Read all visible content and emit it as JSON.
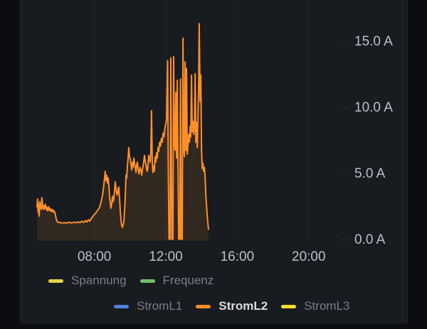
{
  "panel": {
    "page_bg": "#0c0d10",
    "panel_bg": "#181b1f",
    "border_color": "#22252b"
  },
  "chart_data": {
    "type": "line",
    "unit": "A",
    "grid": "vertical-only",
    "legend_position": "bottom",
    "x_axis": {
      "ticks": [
        {
          "hour": 8,
          "label": "08:00"
        },
        {
          "hour": 12,
          "label": "12:00"
        },
        {
          "hour": 16,
          "label": "16:00"
        },
        {
          "hour": 20,
          "label": "20:00"
        }
      ]
    },
    "y_axis": {
      "ticks": [
        {
          "amps": 15,
          "label": "15.0 A"
        },
        {
          "amps": 10,
          "label": "10.0 A"
        },
        {
          "amps": 5,
          "label": "5.0 A"
        },
        {
          "amps": 0,
          "label": "0.0 A"
        }
      ],
      "visible_top_amps": 18.2
    },
    "series": [
      {
        "name": "StromL2",
        "color": "#ff8f2b",
        "fill_opacity": 0.11,
        "points": [
          [
            4.79,
            2.5
          ],
          [
            4.82,
            3.1
          ],
          [
            4.85,
            2.1
          ],
          [
            4.88,
            2.7
          ],
          [
            4.91,
            1.8
          ],
          [
            4.94,
            2.9
          ],
          [
            4.97,
            2.4
          ],
          [
            5.0,
            2.7
          ],
          [
            5.03,
            2.3
          ],
          [
            5.06,
            3.2
          ],
          [
            5.09,
            2.8
          ],
          [
            5.12,
            2.4
          ],
          [
            5.15,
            2.6
          ],
          [
            5.18,
            2.3
          ],
          [
            5.22,
            2.5
          ],
          [
            5.26,
            2.7
          ],
          [
            5.3,
            2.3
          ],
          [
            5.34,
            2.5
          ],
          [
            5.38,
            2.2
          ],
          [
            5.42,
            2.4
          ],
          [
            5.46,
            2.5
          ],
          [
            5.5,
            2.2
          ],
          [
            5.55,
            2.35
          ],
          [
            5.6,
            2.15
          ],
          [
            5.65,
            2.3
          ],
          [
            5.7,
            2.1
          ],
          [
            5.75,
            2.2
          ],
          [
            5.8,
            2.0
          ],
          [
            5.85,
            1.7
          ],
          [
            5.9,
            1.4
          ],
          [
            6.0,
            1.32
          ],
          [
            6.1,
            1.3
          ],
          [
            6.2,
            1.28
          ],
          [
            6.3,
            1.3
          ],
          [
            6.4,
            1.27
          ],
          [
            6.5,
            1.3
          ],
          [
            6.6,
            1.33
          ],
          [
            6.7,
            1.28
          ],
          [
            6.8,
            1.3
          ],
          [
            6.9,
            1.34
          ],
          [
            7.0,
            1.3
          ],
          [
            7.1,
            1.36
          ],
          [
            7.2,
            1.3
          ],
          [
            7.3,
            1.42
          ],
          [
            7.4,
            1.32
          ],
          [
            7.5,
            1.45
          ],
          [
            7.58,
            1.35
          ],
          [
            7.66,
            1.52
          ],
          [
            7.74,
            1.42
          ],
          [
            7.82,
            1.6
          ],
          [
            7.9,
            1.75
          ],
          [
            7.98,
            1.9
          ],
          [
            8.06,
            2.0
          ],
          [
            8.14,
            2.15
          ],
          [
            8.22,
            2.3
          ],
          [
            8.3,
            2.5
          ],
          [
            8.38,
            2.9
          ],
          [
            8.46,
            3.4
          ],
          [
            8.54,
            4.3
          ],
          [
            8.61,
            5.2
          ],
          [
            8.65,
            4.5
          ],
          [
            8.69,
            4.9
          ],
          [
            8.73,
            4.3
          ],
          [
            8.77,
            4.7
          ],
          [
            8.81,
            4.2
          ],
          [
            8.85,
            3.3
          ],
          [
            8.89,
            2.8
          ],
          [
            8.93,
            2.4
          ],
          [
            8.97,
            2.7
          ],
          [
            9.01,
            3.3
          ],
          [
            9.05,
            2.9
          ],
          [
            9.09,
            3.1
          ],
          [
            9.13,
            3.8
          ],
          [
            9.17,
            4.4
          ],
          [
            9.21,
            3.9
          ],
          [
            9.25,
            3.5
          ],
          [
            9.29,
            3.4
          ],
          [
            9.33,
            3.9
          ],
          [
            9.37,
            4.0
          ],
          [
            9.41,
            3.1
          ],
          [
            9.45,
            2.2
          ],
          [
            9.49,
            1.5
          ],
          [
            9.53,
            1.1
          ],
          [
            9.57,
            0.95
          ],
          [
            9.61,
            1.1
          ],
          [
            9.65,
            1.35
          ],
          [
            9.69,
            2.2
          ],
          [
            9.73,
            3.2
          ],
          [
            9.77,
            4.9
          ],
          [
            9.81,
            4.7
          ],
          [
            9.85,
            5.6
          ],
          [
            9.89,
            6.2
          ],
          [
            9.93,
            7.0
          ],
          [
            9.97,
            6.3
          ],
          [
            10.01,
            6.1
          ],
          [
            10.05,
            5.7
          ],
          [
            10.09,
            5.3
          ],
          [
            10.13,
            5.9
          ],
          [
            10.17,
            5.5
          ],
          [
            10.21,
            6.2
          ],
          [
            10.25,
            5.8
          ],
          [
            10.29,
            5.5
          ],
          [
            10.33,
            5.1
          ],
          [
            10.37,
            5.7
          ],
          [
            10.41,
            5.9
          ],
          [
            10.45,
            5.4
          ],
          [
            10.49,
            5.0
          ],
          [
            10.53,
            5.3
          ],
          [
            10.57,
            5.5
          ],
          [
            10.61,
            5.2
          ],
          [
            10.65,
            4.9
          ],
          [
            10.69,
            5.3
          ],
          [
            10.73,
            5.6
          ],
          [
            10.77,
            6.0
          ],
          [
            10.81,
            6.4
          ],
          [
            10.85,
            6.0
          ],
          [
            10.89,
            5.7
          ],
          [
            10.93,
            5.3
          ],
          [
            10.97,
            5.2
          ],
          [
            11.01,
            5.8
          ],
          [
            11.04,
            6.4
          ],
          [
            11.08,
            6.1
          ],
          [
            11.12,
            5.9
          ],
          [
            11.16,
            6.6
          ],
          [
            11.2,
            9.8
          ],
          [
            11.24,
            6.0
          ],
          [
            11.28,
            5.1
          ],
          [
            11.32,
            5.6
          ],
          [
            11.36,
            5.2
          ],
          [
            11.4,
            6.3
          ],
          [
            11.44,
            5.9
          ],
          [
            11.48,
            6.6
          ],
          [
            11.52,
            6.2
          ],
          [
            11.56,
            7.0
          ],
          [
            11.6,
            6.7
          ],
          [
            11.65,
            7.4
          ],
          [
            11.7,
            7.1
          ],
          [
            11.75,
            7.7
          ],
          [
            11.8,
            7.4
          ],
          [
            11.85,
            8.1
          ],
          [
            11.9,
            7.8
          ],
          [
            11.95,
            8.5
          ],
          [
            12.0,
            8.8
          ],
          [
            12.04,
            9.2
          ],
          [
            12.1,
            13.6
          ],
          [
            12.14,
            5.0
          ],
          [
            12.18,
            0.05
          ],
          [
            12.24,
            0.05
          ],
          [
            12.28,
            13.8
          ],
          [
            12.34,
            0.05
          ],
          [
            12.4,
            0.05
          ],
          [
            12.44,
            13.9
          ],
          [
            12.48,
            7.5
          ],
          [
            12.52,
            6.8
          ],
          [
            12.56,
            11.2
          ],
          [
            12.6,
            6.2
          ],
          [
            12.64,
            12.1
          ],
          [
            12.68,
            5.8
          ],
          [
            12.72,
            0.05
          ],
          [
            12.78,
            0.05
          ],
          [
            12.82,
            12.2
          ],
          [
            12.86,
            0.05
          ],
          [
            12.92,
            0.05
          ],
          [
            12.96,
            15.3
          ],
          [
            13.0,
            7.2
          ],
          [
            13.04,
            6.3
          ],
          [
            13.08,
            13.5
          ],
          [
            13.12,
            6.8
          ],
          [
            13.16,
            13.0
          ],
          [
            13.2,
            6.5
          ],
          [
            13.24,
            7.2
          ],
          [
            13.28,
            8.0
          ],
          [
            13.32,
            7.4
          ],
          [
            13.36,
            8.6
          ],
          [
            13.4,
            7.8
          ],
          [
            13.44,
            12.5
          ],
          [
            13.48,
            8.2
          ],
          [
            13.52,
            9.0
          ],
          [
            13.56,
            8.0
          ],
          [
            13.6,
            8.3
          ],
          [
            13.64,
            12.6
          ],
          [
            13.68,
            7.4
          ],
          [
            13.72,
            8.9
          ],
          [
            13.76,
            7.0
          ],
          [
            13.8,
            9.5
          ],
          [
            13.84,
            12.0
          ],
          [
            13.87,
            16.4
          ],
          [
            13.92,
            10.5
          ],
          [
            13.96,
            12.5
          ],
          [
            14.0,
            6.8
          ],
          [
            14.04,
            5.4
          ],
          [
            14.08,
            5.8
          ],
          [
            14.12,
            5.2
          ],
          [
            14.16,
            5.5
          ],
          [
            14.2,
            4.8
          ],
          [
            14.24,
            3.4
          ],
          [
            14.28,
            2.6
          ],
          [
            14.32,
            1.8
          ],
          [
            14.36,
            1.2
          ],
          [
            14.39,
            0.8
          ]
        ]
      }
    ],
    "legend": {
      "rows": [
        {
          "items": [
            {
              "label": "Spannung",
              "color": "#e8d44b",
              "active": false
            },
            {
              "label": "Frequenz",
              "color": "#73bf69",
              "active": false
            }
          ]
        },
        {
          "items": [
            {
              "label": "StromL1",
              "color": "#4d83de",
              "active": false
            },
            {
              "label": "StromL2",
              "color": "#ff8f2b",
              "active": true
            },
            {
              "label": "StromL3",
              "color": "#fade2a",
              "active": false
            }
          ]
        }
      ]
    }
  }
}
